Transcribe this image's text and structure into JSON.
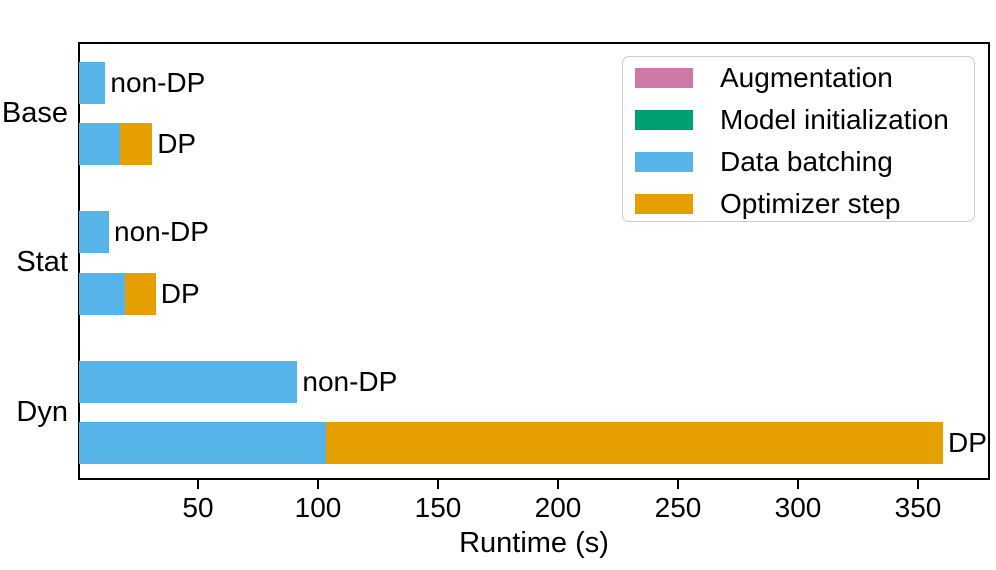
{
  "chart_data": {
    "type": "bar",
    "orientation": "horizontal-stacked",
    "title": "",
    "xlabel": "Runtime (s)",
    "ylabel": "",
    "xlim": [
      0,
      380
    ],
    "xticks": [
      50,
      100,
      150,
      200,
      250,
      300,
      350
    ],
    "grid": false,
    "groups": [
      "Base",
      "Stat",
      "Dyn"
    ],
    "rows": [
      {
        "group": "Base",
        "label": "non-DP"
      },
      {
        "group": "Base",
        "label": "DP"
      },
      {
        "group": "Stat",
        "label": "non-DP"
      },
      {
        "group": "Stat",
        "label": "DP"
      },
      {
        "group": "Dyn",
        "label": "non-DP"
      },
      {
        "group": "Dyn",
        "label": "DP"
      }
    ],
    "series": [
      {
        "name": "Augmentation",
        "color": "#CC79A7",
        "values": [
          0,
          0,
          0,
          0,
          0,
          0
        ]
      },
      {
        "name": "Model initialization",
        "color": "#009E73",
        "values": [
          0,
          0,
          0,
          0,
          0,
          0
        ]
      },
      {
        "name": "Data batching",
        "color": "#56B4E9",
        "values": [
          11,
          17,
          12.5,
          19,
          91,
          103
        ]
      },
      {
        "name": "Optimizer step",
        "color": "#E69F00",
        "values": [
          0,
          13.5,
          0,
          13,
          0,
          257
        ]
      }
    ],
    "row_totals": [
      11,
      30.5,
      12.5,
      32,
      91,
      360
    ],
    "legend": {
      "position": "upper-right",
      "entries": [
        "Augmentation",
        "Model initialization",
        "Data batching",
        "Optimizer step"
      ]
    }
  }
}
